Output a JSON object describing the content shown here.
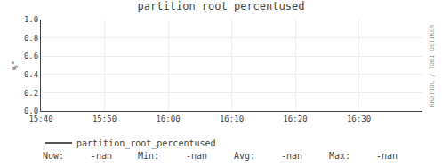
{
  "chart_data": {
    "type": "line",
    "title": "partition_root_percentused",
    "y_label": "%°",
    "categories": [
      "15:40",
      "15:50",
      "16:00",
      "16:10",
      "16:20",
      "16:30"
    ],
    "series": [
      {
        "name": "partition_root_percentused",
        "color": "#555555",
        "values": [
          null,
          null,
          null,
          null,
          null,
          null
        ]
      }
    ],
    "ylim": [
      0.0,
      1.0
    ],
    "yticks": [
      {
        "value": 0.0,
        "label": "0.0"
      },
      0.2,
      0.4,
      0.6,
      0.8,
      {
        "value": 1.0,
        "label": "1.0"
      }
    ],
    "grid": true,
    "annotations": [
      "Now:",
      "-nan",
      "Min:",
      "-nan",
      "Avg:",
      "-nan",
      "Max:",
      "-nan",
      "RRDTOOL / TOBI OETIKER"
    ]
  }
}
